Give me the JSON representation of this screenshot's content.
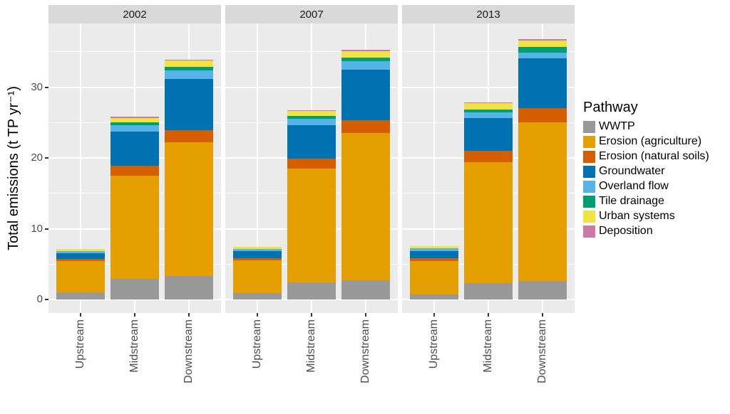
{
  "chart_data": {
    "type": "bar",
    "stacked": true,
    "facet_titles": [
      "2002",
      "2007",
      "2013"
    ],
    "categories": [
      "Upstream",
      "Midstream",
      "Downstream"
    ],
    "ylabel": "Total emissions (t TP yr⁻¹)",
    "y_major_ticks": [
      0,
      10,
      20,
      30
    ],
    "y_minor_ticks": [
      5,
      15,
      25,
      35
    ],
    "ylim": [
      -1.9,
      39.0
    ],
    "grid": true,
    "legend_title": "Pathway",
    "legend_position": "right",
    "series": [
      {
        "name": "WWTP",
        "color": "#999999",
        "values": {
          "2002": [
            1.0,
            2.9,
            3.3
          ],
          "2007": [
            0.9,
            2.45,
            2.7
          ],
          "2013": [
            0.7,
            2.3,
            2.6
          ]
        }
      },
      {
        "name": "Erosion (agriculture)",
        "color": "#E69F00",
        "values": {
          "2002": [
            4.45,
            14.6,
            18.9
          ],
          "2007": [
            4.65,
            16.05,
            20.8
          ],
          "2013": [
            4.75,
            17.1,
            22.4
          ]
        }
      },
      {
        "name": "Erosion (natural soils)",
        "color": "#D55E00",
        "values": {
          "2002": [
            0.3,
            1.35,
            1.7
          ],
          "2007": [
            0.3,
            1.4,
            1.8
          ],
          "2013": [
            0.35,
            1.6,
            2.0
          ]
        }
      },
      {
        "name": "Groundwater",
        "color": "#0072B2",
        "values": {
          "2002": [
            0.8,
            4.9,
            7.3
          ],
          "2007": [
            0.95,
            4.7,
            7.2
          ],
          "2013": [
            1.0,
            4.6,
            7.1
          ]
        }
      },
      {
        "name": "Overland flow",
        "color": "#56B4E9",
        "values": {
          "2002": [
            0.25,
            0.85,
            1.2
          ],
          "2007": [
            0.3,
            0.9,
            1.2
          ],
          "2013": [
            0.45,
            0.8,
            0.8
          ]
        }
      },
      {
        "name": "Tile drainage",
        "color": "#009E73",
        "values": {
          "2002": [
            0.0,
            0.4,
            0.5
          ],
          "2007": [
            0.0,
            0.45,
            0.5
          ],
          "2013": [
            0.0,
            0.45,
            0.8
          ]
        }
      },
      {
        "name": "Urban systems",
        "color": "#F0E442",
        "values": {
          "2002": [
            0.3,
            0.65,
            0.9
          ],
          "2007": [
            0.3,
            0.7,
            0.85
          ],
          "2013": [
            0.3,
            0.9,
            0.85
          ]
        }
      },
      {
        "name": "Deposition",
        "color": "#CC79A7",
        "values": {
          "2002": [
            0.0,
            0.15,
            0.05
          ],
          "2007": [
            0.0,
            0.1,
            0.25
          ],
          "2013": [
            0.0,
            0.1,
            0.2
          ]
        }
      }
    ]
  },
  "style": {
    "panel_bg": "#EBEBEB",
    "strip_bg": "#D9D9D9",
    "grid_color": "#FFFFFF",
    "axis_text_color": "#4D4D4D",
    "strip_text_color": "#1A1A1A",
    "text_color": "#000000"
  }
}
